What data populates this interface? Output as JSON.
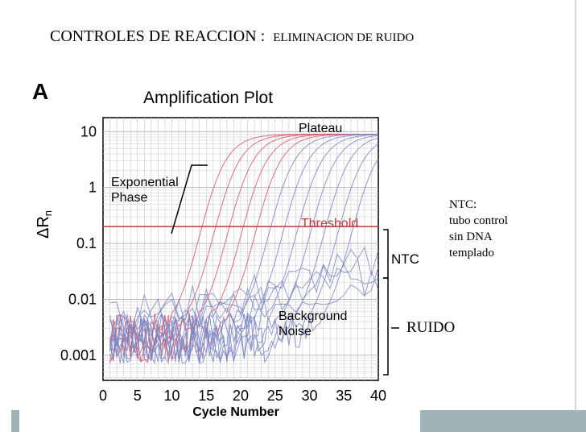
{
  "slide": {
    "title_main": "CONTROLES DE REACCION :",
    "title_sub": "ELIMINACION DE RUIDO",
    "side_note_lines": [
      "NTC:",
      "tubo control",
      "sin DNA",
      "templado"
    ],
    "ruido_label": "RUIDO",
    "accent_color": "#9fb3b8"
  },
  "chart_data": {
    "type": "line",
    "panel_label": "A",
    "title": "Amplification Plot",
    "xlabel": "Cycle Number",
    "ylabel": "ΔRn",
    "x_ticks": [
      0,
      5,
      10,
      15,
      20,
      25,
      30,
      35,
      40
    ],
    "y_ticks": [
      {
        "label": "10",
        "value": 10
      },
      {
        "label": "1",
        "value": 1
      },
      {
        "label": "0.1",
        "value": 0.1
      },
      {
        "label": "0.01",
        "value": 0.01
      },
      {
        "label": "0.001",
        "value": 0.001
      }
    ],
    "y_scale": "log",
    "xlim": [
      0,
      40
    ],
    "ylim": [
      0.0003,
      20
    ],
    "grid": true,
    "threshold": {
      "label": "Threshold",
      "value": 0.2,
      "color": "#c0393b"
    },
    "annotations": {
      "plateau": "Plateau",
      "exponential_phase": "Exponential Phase",
      "background_noise": "Background Noise",
      "ntc": "NTC"
    },
    "series_colors": {
      "early": "#d9536b",
      "late": "#7a86c4"
    },
    "amplification_curves_ct": [
      9.5,
      11.5,
      13.5,
      15.5,
      17.5,
      19.5,
      21.5,
      23.5,
      25.5,
      27.5,
      29.5,
      31.5
    ],
    "plateau_value": 9,
    "baseline_value": 0.002,
    "ntc_curves": [
      {
        "start": 0.0025,
        "end": 0.025
      },
      {
        "start": 0.0035,
        "end": 0.03
      },
      {
        "start": 0.004,
        "end": 0.04
      },
      {
        "start": 0.005,
        "end": 0.05
      }
    ]
  }
}
